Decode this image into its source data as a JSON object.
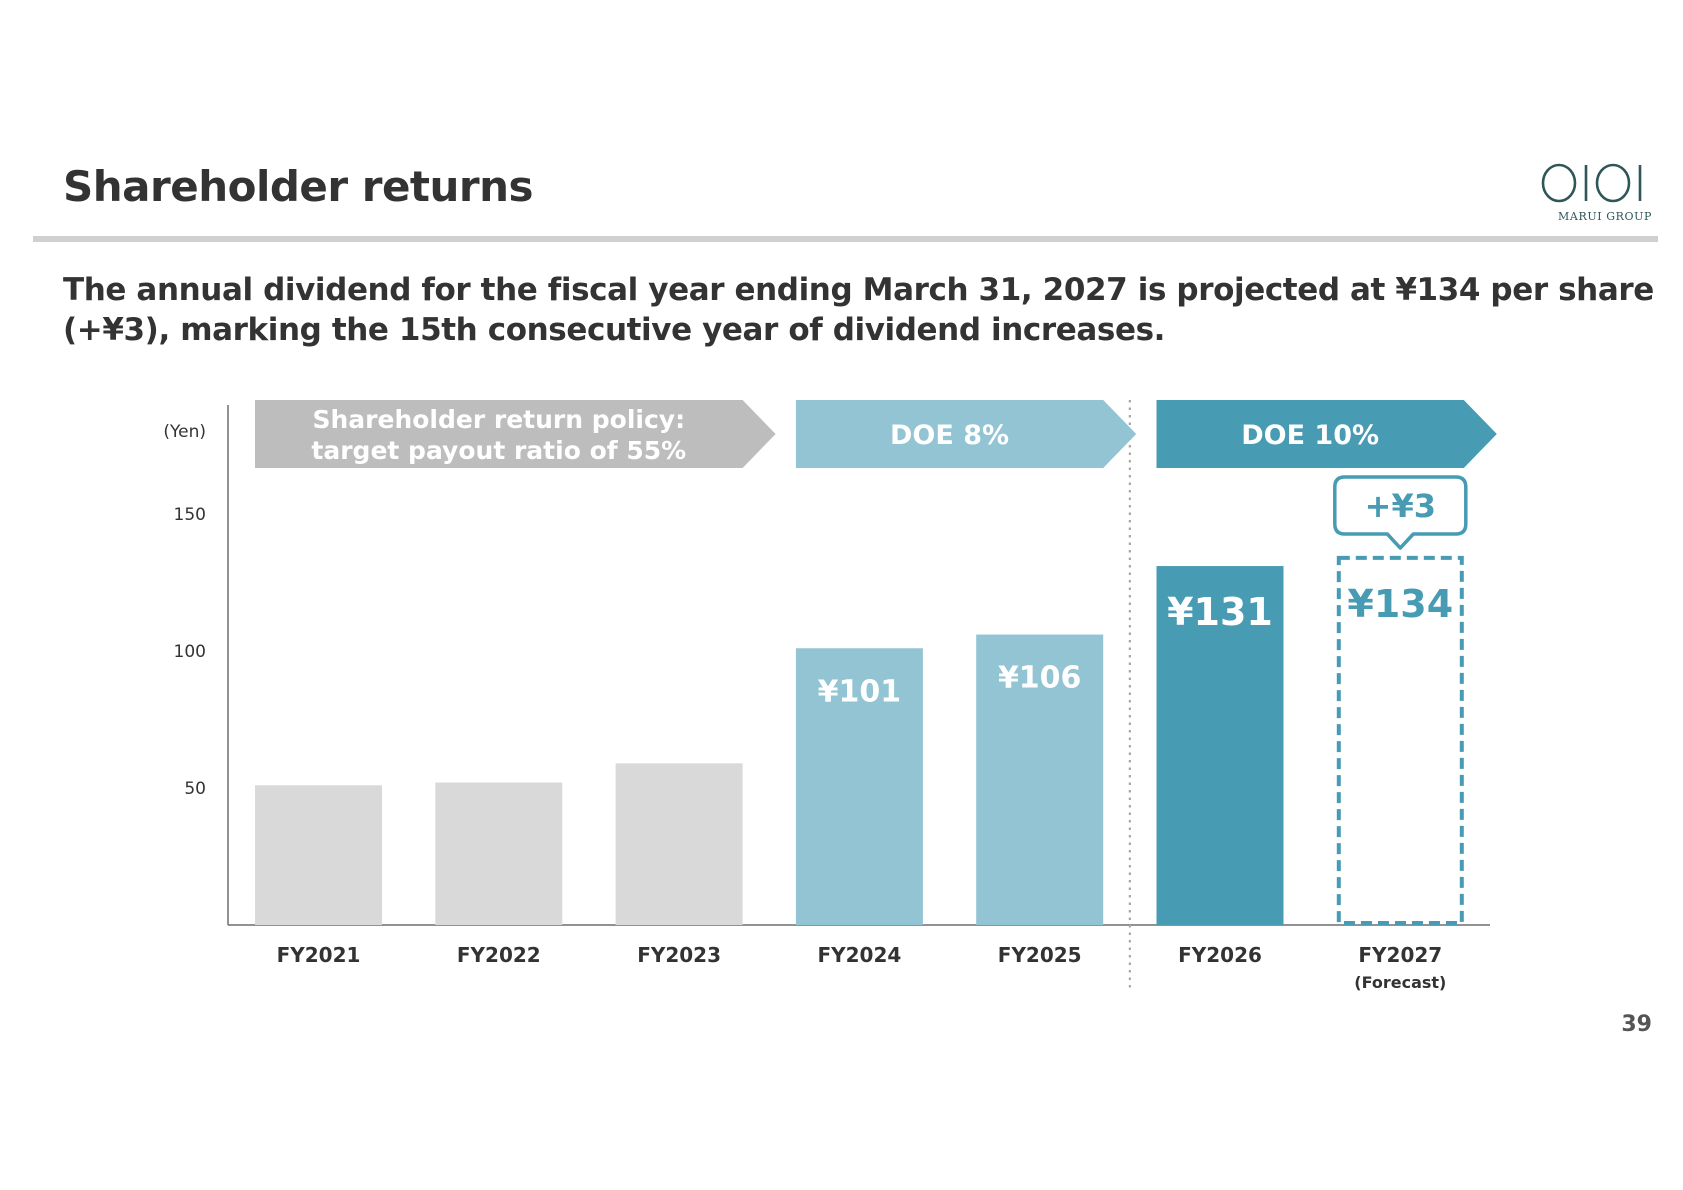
{
  "slide": {
    "title": "Shareholder returns",
    "headline": "The annual dividend for the fiscal year ending March 31, 2027 is projected at ¥134 per share (+¥3), marking the 15th consecutive year of dividend increases.",
    "page_number": "39"
  },
  "logo": {
    "mark": "OIOI",
    "text": "MARUI GROUP",
    "color": "#2f5757"
  },
  "chart_data": {
    "type": "bar",
    "unit_label": "(Yen)",
    "categories": [
      "FY2021",
      "FY2022",
      "FY2023",
      "FY2024",
      "FY2025",
      "FY2026",
      "FY2027"
    ],
    "category_sublabels": [
      "",
      "",
      "",
      "",
      "",
      "",
      "(Forecast)"
    ],
    "values": [
      51,
      52,
      59,
      101,
      106,
      131,
      134
    ],
    "value_labels": [
      "",
      "",
      "",
      "¥101",
      "¥106",
      "¥131",
      "¥134"
    ],
    "forecast_index": 6,
    "bar_colors": [
      "#d9d9d9",
      "#d9d9d9",
      "#d9d9d9",
      "#92c4d3",
      "#92c4d3",
      "#479bb2",
      "#479bb2"
    ],
    "yticks": [
      50,
      100,
      150
    ],
    "ylim": [
      0,
      190
    ],
    "policy_bands": [
      {
        "lines": [
          "Shareholder return policy:",
          "target payout ratio of 55%"
        ],
        "from": 0,
        "to": 2,
        "color": "#bdbdbd"
      },
      {
        "lines": [
          "DOE 8%"
        ],
        "from": 3,
        "to": 4,
        "color": "#92c4d3"
      },
      {
        "lines": [
          "DOE 10%"
        ],
        "from": 5,
        "to": 6,
        "color": "#479bb2"
      }
    ],
    "callout": {
      "text": "+¥3",
      "index": 6,
      "color": "#479bb2"
    },
    "divider_after_index": 4
  }
}
